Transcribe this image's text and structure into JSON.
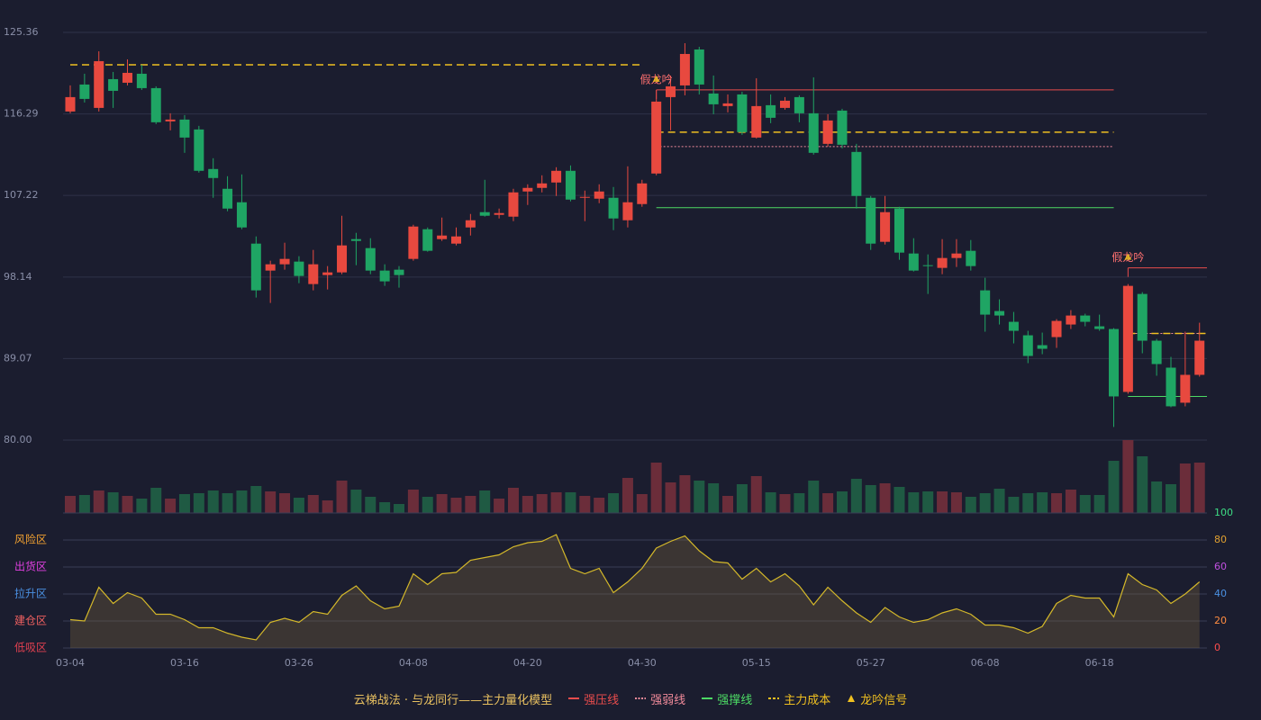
{
  "chart_data": [
    {
      "type": "candlestick",
      "up_color": "#e8493f",
      "down_color": "#1fa564",
      "categories": [
        "03-04",
        null,
        null,
        null,
        null,
        null,
        null,
        null,
        "03-16",
        null,
        null,
        null,
        null,
        null,
        null,
        null,
        "03-26",
        null,
        null,
        null,
        null,
        null,
        null,
        null,
        "04-08",
        null,
        null,
        null,
        null,
        null,
        null,
        null,
        "04-20",
        null,
        null,
        null,
        null,
        null,
        null,
        null,
        "04-30",
        null,
        null,
        null,
        null,
        null,
        null,
        null,
        "05-15",
        null,
        null,
        null,
        null,
        null,
        null,
        null,
        "05-27",
        null,
        null,
        null,
        null,
        null,
        null,
        null,
        "06-08",
        null,
        null,
        null,
        null,
        null,
        null,
        null,
        "06-18",
        null,
        null,
        null,
        null,
        null,
        null,
        null
      ],
      "open": [
        116.56,
        119.56,
        116.96,
        120.16,
        119.76,
        120.76,
        119.16,
        115.46,
        115.66,
        114.56,
        110.16,
        107.96,
        106.46,
        101.86,
        98.86,
        99.56,
        99.86,
        97.36,
        98.36,
        98.66,
        102.36,
        101.36,
        98.86,
        98.96,
        100.16,
        103.46,
        102.36,
        101.86,
        103.66,
        105.36,
        105.06,
        104.86,
        107.66,
        108.06,
        108.66,
        109.96,
        106.96,
        106.86,
        106.96,
        104.46,
        106.26,
        109.66,
        118.16,
        119.46,
        123.46,
        118.56,
        117.16,
        118.46,
        113.66,
        117.26,
        116.96,
        118.16,
        116.36,
        112.96,
        116.66,
        112.06,
        106.96,
        102.06,
        105.76,
        100.76,
        99.46,
        99.16,
        100.26,
        101.06,
        96.66,
        94.36,
        93.16,
        91.66,
        90.56,
        91.46,
        92.86,
        93.86,
        92.66,
        92.36,
        85.36,
        96.26,
        91.06,
        88.06,
        84.16,
        87.26
      ],
      "close": [
        118.16,
        117.96,
        122.16,
        118.86,
        120.86,
        119.16,
        115.36,
        115.66,
        113.66,
        109.96,
        109.16,
        105.76,
        103.66,
        96.66,
        99.56,
        100.16,
        98.26,
        99.56,
        98.66,
        101.66,
        102.16,
        98.86,
        97.66,
        98.36,
        103.76,
        101.06,
        102.76,
        102.66,
        104.46,
        104.96,
        105.26,
        107.56,
        108.06,
        108.56,
        109.96,
        106.76,
        107.06,
        107.66,
        104.66,
        106.46,
        108.56,
        117.66,
        119.36,
        122.96,
        119.56,
        117.36,
        117.46,
        114.26,
        117.16,
        115.86,
        117.76,
        116.36,
        111.96,
        115.56,
        112.86,
        107.16,
        101.86,
        105.36,
        100.86,
        98.86,
        99.36,
        100.26,
        100.76,
        99.36,
        93.96,
        93.86,
        92.16,
        89.36,
        90.16,
        93.26,
        93.86,
        93.16,
        92.36,
        84.86,
        97.16,
        91.06,
        88.46,
        83.76,
        87.26,
        91.06
      ],
      "high": [
        119.46,
        120.76,
        123.26,
        120.96,
        122.36,
        121.76,
        119.36,
        116.36,
        116.16,
        114.96,
        111.36,
        109.36,
        109.56,
        102.66,
        99.96,
        101.96,
        100.46,
        101.16,
        99.36,
        104.96,
        103.06,
        102.46,
        99.56,
        99.36,
        103.96,
        103.66,
        104.76,
        103.66,
        105.16,
        108.96,
        105.76,
        107.96,
        108.46,
        109.46,
        110.36,
        110.56,
        107.76,
        108.46,
        108.16,
        110.46,
        108.96,
        118.96,
        120.56,
        124.16,
        123.76,
        120.56,
        118.46,
        118.76,
        120.26,
        118.46,
        118.16,
        118.36,
        120.36,
        116.26,
        116.86,
        112.96,
        107.16,
        107.16,
        105.96,
        102.46,
        100.66,
        102.36,
        102.36,
        102.26,
        98.06,
        95.66,
        94.26,
        92.16,
        91.96,
        93.46,
        94.46,
        94.06,
        93.96,
        92.46,
        97.36,
        96.46,
        91.26,
        89.26,
        92.06,
        93.06
      ],
      "low": [
        116.36,
        117.56,
        116.56,
        116.96,
        119.46,
        118.96,
        115.16,
        114.46,
        111.96,
        109.76,
        106.96,
        105.46,
        103.46,
        95.86,
        95.26,
        98.96,
        97.46,
        96.66,
        96.76,
        98.46,
        99.46,
        98.46,
        97.16,
        96.96,
        99.96,
        100.96,
        102.16,
        101.66,
        102.76,
        104.86,
        104.66,
        104.36,
        106.16,
        107.56,
        107.16,
        106.56,
        104.36,
        106.36,
        103.36,
        103.66,
        105.96,
        109.46,
        114.46,
        118.36,
        118.46,
        116.26,
        116.46,
        113.96,
        113.56,
        115.26,
        116.76,
        115.36,
        111.76,
        112.66,
        112.46,
        105.76,
        101.16,
        101.76,
        100.06,
        98.76,
        96.26,
        98.46,
        99.26,
        98.86,
        92.06,
        92.86,
        90.76,
        88.56,
        89.56,
        90.26,
        92.36,
        92.66,
        92.16,
        81.46,
        85.16,
        89.66,
        87.16,
        83.66,
        83.76,
        87.06
      ],
      "ylim": [
        80,
        125.36
      ],
      "yticks": [
        {
          "value": 80,
          "label": "80.00"
        },
        89.07,
        98.14,
        107.22,
        116.29,
        125.36
      ],
      "grid": true,
      "levels": [
        {
          "name": "强压线",
          "color": "#e84c4c",
          "style": "solid",
          "segments": [
            {
              "value": 118.96,
              "from": 41,
              "to": 73
            },
            {
              "value": 99.16,
              "from": 74,
              "to": 79
            }
          ]
        },
        {
          "name": "强弱线",
          "color": "#f08a9a",
          "style": "dotted",
          "segments": [
            {
              "value": 112.66,
              "from": 41,
              "to": 73
            },
            {
              "value": 91.86,
              "from": 74,
              "to": 79
            }
          ]
        },
        {
          "name": "强撑线",
          "color": "#4cd964",
          "style": "solid",
          "segments": [
            {
              "value": 105.86,
              "from": 41,
              "to": 73
            },
            {
              "value": 84.86,
              "from": 74,
              "to": 79
            }
          ]
        },
        {
          "name": "主力成本",
          "color": "#f0c020",
          "style": "dashed",
          "segments": [
            {
              "value": 121.76,
              "from": 0,
              "to": 40
            },
            {
              "value": 114.26,
              "from": 41,
              "to": 73
            },
            {
              "value": 91.86,
              "from": 74,
              "to": 79
            }
          ]
        }
      ],
      "signals": {
        "name": "龙吟信号",
        "color": "#f0c020",
        "label_color": "#ff7070",
        "points": [
          {
            "index": 41,
            "value": 118.96,
            "label": "假龙吟"
          },
          {
            "index": 74,
            "value": 99.16,
            "label": "假龙吟"
          }
        ]
      },
      "legend_title": "云梯战法 · 与龙同行——主力量化模型",
      "legend_title_color": "#e8c060"
    },
    {
      "type": "bar",
      "up_color": "#6b2d3a",
      "down_color": "#1f5a43",
      "values": [
        19,
        20,
        25,
        23,
        19,
        16,
        28,
        16,
        21,
        22,
        25,
        22,
        25,
        30,
        24,
        22,
        17,
        20,
        14,
        36,
        26,
        18,
        12,
        10,
        26,
        18,
        21,
        17,
        19,
        25,
        16,
        28,
        19,
        21,
        23,
        23,
        19,
        17,
        22,
        39,
        21,
        56,
        34,
        42,
        36,
        33,
        19,
        32,
        41,
        23,
        21,
        22,
        36,
        22,
        24,
        38,
        31,
        33,
        29,
        23,
        24,
        24,
        23,
        18,
        22,
        27,
        18,
        22,
        23,
        22,
        26,
        20,
        20,
        58,
        81,
        63,
        35,
        32,
        55,
        56
      ]
    },
    {
      "type": "area",
      "color": "#d4b82a",
      "fill": "rgba(120,100,60,0.35)",
      "values": [
        21,
        20,
        45,
        33,
        41,
        37,
        25,
        25,
        21,
        15,
        15,
        11,
        8,
        6,
        19,
        22,
        19,
        27,
        25,
        39,
        46,
        35,
        29,
        31,
        55,
        47,
        55,
        56,
        65,
        67,
        69,
        75,
        78,
        79,
        84,
        59,
        55,
        59,
        41,
        49,
        59,
        74,
        79,
        83,
        72,
        64,
        63,
        51,
        59,
        49,
        55,
        46,
        32,
        45,
        35,
        26,
        19,
        30,
        23,
        19,
        21,
        26,
        29,
        25,
        17,
        17,
        15,
        11,
        16,
        33,
        39,
        37,
        37,
        23,
        55,
        47,
        43,
        33,
        40,
        49
      ],
      "ylim": [
        0,
        100
      ],
      "yticks": [
        0,
        20,
        40,
        60,
        80,
        100
      ],
      "ytick_colors": [
        "#ff4d4d",
        "#ff8c40",
        "#4a90e2",
        "#c050e0",
        "#e0a030",
        "#3ddc84"
      ],
      "zones": [
        {
          "value": 80,
          "label": "风险区",
          "color": "#f0a030"
        },
        {
          "value": 60,
          "label": "出货区",
          "color": "#e040e0"
        },
        {
          "value": 40,
          "label": "拉升区",
          "color": "#4a90e2"
        },
        {
          "value": 20,
          "label": "建仓区",
          "color": "#f06060"
        },
        {
          "value": 0,
          "label": "低吸区",
          "color": "#e04050"
        }
      ]
    }
  ]
}
